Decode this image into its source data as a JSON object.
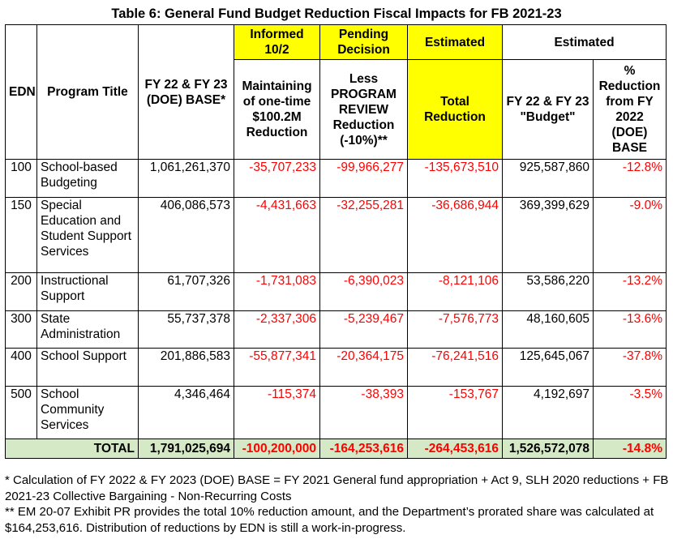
{
  "title": "Table 6:  General Fund Budget Reduction Fiscal Impacts for FB 2021-23",
  "header": {
    "informed": "Informed 10/2",
    "pending": "Pending Decision",
    "estimated_a": "Estimated",
    "estimated_b": "Estimated",
    "edn": "EDN",
    "program_title": "Program Title",
    "base": "FY 22 & FY 23 (DOE) BASE*",
    "maintaining": "Maintaining of one-time $100.2M Reduction",
    "less_review": "Less PROGRAM REVIEW Reduction (-10%)**",
    "total_reduction": "Total Reduction",
    "budget": "FY 22 & FY 23 \"Budget\"",
    "pct": "% Reduction from FY 2022 (DOE) BASE"
  },
  "rows": [
    {
      "edn": "100",
      "program": "School-based Budgeting",
      "base": "1,061,261,370",
      "maintain": "-35,707,233",
      "review": "-99,966,277",
      "total": "-135,673,510",
      "budget": "925,587,860",
      "pct": "-12.8%"
    },
    {
      "edn": "150",
      "program": "Special Education and Student Support Services",
      "base": "406,086,573",
      "maintain": "-4,431,663",
      "review": "-32,255,281",
      "total": "-36,686,944",
      "budget": "369,399,629",
      "pct": "-9.0%"
    },
    {
      "edn": "200",
      "program": "Instructional Support",
      "base": "61,707,326",
      "maintain": "-1,731,083",
      "review": "-6,390,023",
      "total": "-8,121,106",
      "budget": "53,586,220",
      "pct": "-13.2%"
    },
    {
      "edn": "300",
      "program": "State Administration",
      "base": "55,737,378",
      "maintain": "-2,337,306",
      "review": "-5,239,467",
      "total": "-7,576,773",
      "budget": "48,160,605",
      "pct": "-13.6%"
    },
    {
      "edn": "400",
      "program": "School Support",
      "base": "201,886,583",
      "maintain": "-55,877,341",
      "review": "-20,364,175",
      "total": "-76,241,516",
      "budget": "125,645,067",
      "pct": "-37.8%"
    },
    {
      "edn": "500",
      "program": "School Community Services",
      "base": "4,346,464",
      "maintain": "-115,374",
      "review": "-38,393",
      "total": "-153,767",
      "budget": "4,192,697",
      "pct": "-3.5%"
    }
  ],
  "total_row": {
    "label": "TOTAL",
    "base": "1,791,025,694",
    "maintain": "-100,200,000",
    "review": "-164,253,616",
    "total": "-264,453,616",
    "budget": "1,526,572,078",
    "pct": "-14.8%"
  },
  "notes": {
    "note1": "* Calculation of FY 2022 & FY 2023 (DOE) BASE = FY 2021 General fund appropriation + Act 9, SLH 2020 reductions + FB 2021-23 Collective Bargaining - Non-Recurring Costs",
    "note2": "** EM 20-07 Exhibit PR provides the total 10% reduction amount, and the Department’s prorated share was calculated at $164,253,616.  Distribution of reductions by EDN is still a work-in-progress."
  },
  "colors": {
    "highlight": "#ffff00",
    "negative": "#ff0000",
    "total_row_bg": "#d6e9c6"
  }
}
